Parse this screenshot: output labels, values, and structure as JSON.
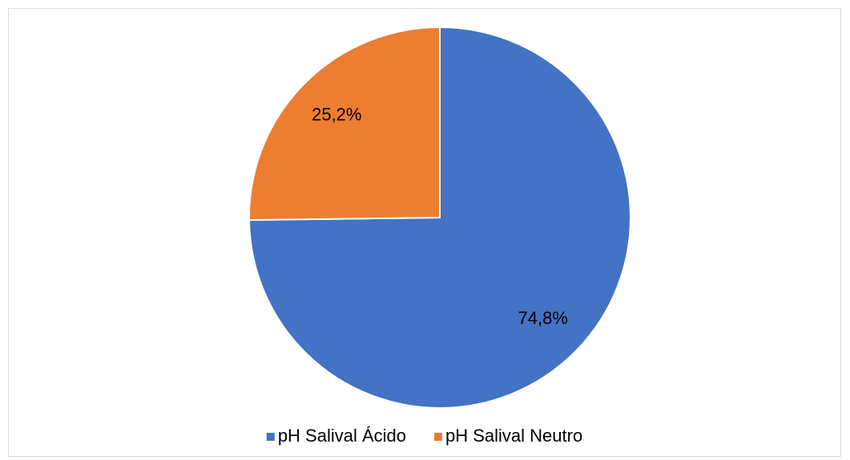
{
  "chart_data": {
    "type": "pie",
    "categories": [
      "pH Salival Ácido",
      "pH Salival Neutro"
    ],
    "values": [
      74.8,
      25.2
    ],
    "value_labels": [
      "74,8%",
      "25,2%"
    ],
    "colors": [
      "#4472c4",
      "#ed7d31"
    ],
    "legend": "bottom"
  }
}
